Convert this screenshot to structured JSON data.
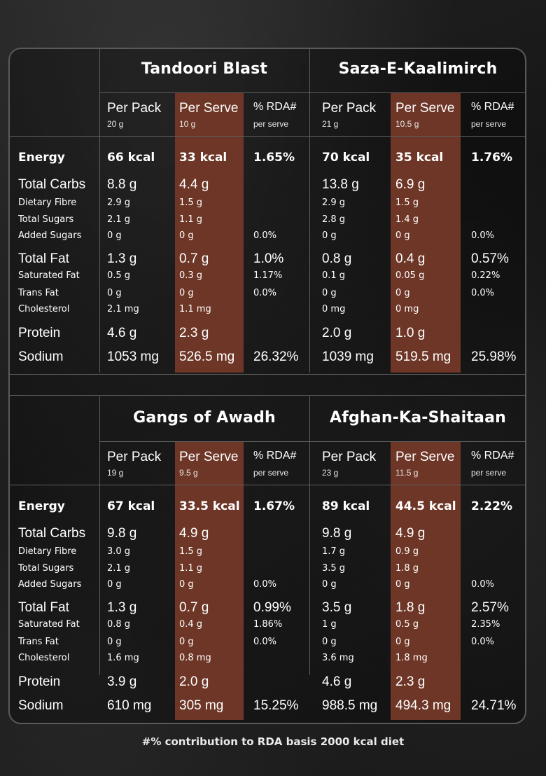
{
  "columns": {
    "per_pack": "Per Pack",
    "per_serve": "Per Serve",
    "rda": "% RDA#",
    "rda_sub": "per serve"
  },
  "row_labels": [
    "Energy",
    "Total Carbs",
    "Dietary Fibre",
    "Total Sugars",
    "Added Sugars",
    "Total Fat",
    "Saturated Fat",
    "Trans Fat",
    "Cholesterol",
    "Protein",
    "Sodium"
  ],
  "products": [
    {
      "name": "Tandoori Blast",
      "pack_weight": "20 g",
      "serve_weight": "10 g",
      "values": [
        [
          "66 kcal",
          "33 kcal",
          "1.65%"
        ],
        [
          "8.8 g",
          "4.4 g",
          ""
        ],
        [
          "2.9 g",
          "1.5 g",
          ""
        ],
        [
          "2.1 g",
          "1.1 g",
          ""
        ],
        [
          "0 g",
          "0 g",
          "0.0%"
        ],
        [
          "1.3 g",
          "0.7 g",
          "1.0%"
        ],
        [
          "0.5 g",
          "0.3 g",
          "1.17%"
        ],
        [
          "0 g",
          "0 g",
          "0.0%"
        ],
        [
          "2.1 mg",
          "1.1 mg",
          ""
        ],
        [
          "4.6 g",
          "2.3 g",
          ""
        ],
        [
          "1053 mg",
          "526.5 mg",
          "26.32%"
        ]
      ]
    },
    {
      "name": "Saza-E-Kaalimirch",
      "pack_weight": "21 g",
      "serve_weight": "10.5 g",
      "values": [
        [
          "70 kcal",
          "35 kcal",
          "1.76%"
        ],
        [
          "13.8 g",
          "6.9 g",
          ""
        ],
        [
          "2.9 g",
          "1.5 g",
          ""
        ],
        [
          "2.8 g",
          "1.4 g",
          ""
        ],
        [
          "0 g",
          "0 g",
          "0.0%"
        ],
        [
          "0.8 g",
          "0.4 g",
          "0.57%"
        ],
        [
          "0.1 g",
          "0.05 g",
          "0.22%"
        ],
        [
          "0 g",
          "0 g",
          "0.0%"
        ],
        [
          "0 mg",
          "0 mg",
          ""
        ],
        [
          "2.0 g",
          "1.0 g",
          ""
        ],
        [
          "1039 mg",
          "519.5 mg",
          "25.98%"
        ]
      ]
    },
    {
      "name": "Gangs of Awadh",
      "pack_weight": "19 g",
      "serve_weight": "9.5 g",
      "values": [
        [
          "67 kcal",
          "33.5 kcal",
          "1.67%"
        ],
        [
          "9.8 g",
          "4.9 g",
          ""
        ],
        [
          "3.0 g",
          "1.5 g",
          ""
        ],
        [
          "2.1 g",
          "1.1 g",
          ""
        ],
        [
          "0 g",
          "0 g",
          "0.0%"
        ],
        [
          "1.3 g",
          "0.7 g",
          "0.99%"
        ],
        [
          "0.8 g",
          "0.4 g",
          "1.86%"
        ],
        [
          "0 g",
          "0 g",
          "0.0%"
        ],
        [
          "1.6 mg",
          "0.8 mg",
          ""
        ],
        [
          "3.9 g",
          "2.0 g",
          ""
        ],
        [
          "610 mg",
          "305 mg",
          "15.25%"
        ]
      ]
    },
    {
      "name": "Afghan-Ka-Shaitaan",
      "pack_weight": "23 g",
      "serve_weight": "11.5 g",
      "values": [
        [
          "89 kcal",
          "44.5 kcal",
          "2.22%"
        ],
        [
          "9.8 g",
          "4.9 g",
          ""
        ],
        [
          "1.7 g",
          "0.9 g",
          ""
        ],
        [
          "3.5 g",
          "1.8 g",
          ""
        ],
        [
          "0 g",
          "0 g",
          "0.0%"
        ],
        [
          "3.5 g",
          "1.8 g",
          "2.57%"
        ],
        [
          "1 g",
          "0.5 g",
          "2.35%"
        ],
        [
          "0 g",
          "0 g",
          "0.0%"
        ],
        [
          "3.6 mg",
          "1.8 mg",
          ""
        ],
        [
          "4.6 g",
          "2.3 g",
          ""
        ],
        [
          "988.5 mg",
          "494.3 mg",
          "24.71%"
        ]
      ]
    }
  ],
  "footnote": "#% contribution to RDA basis 2000 kcal diet",
  "colors": {
    "highlight": "#6e3626",
    "divider": "#5e5e5e",
    "text": "#ffffff"
  }
}
